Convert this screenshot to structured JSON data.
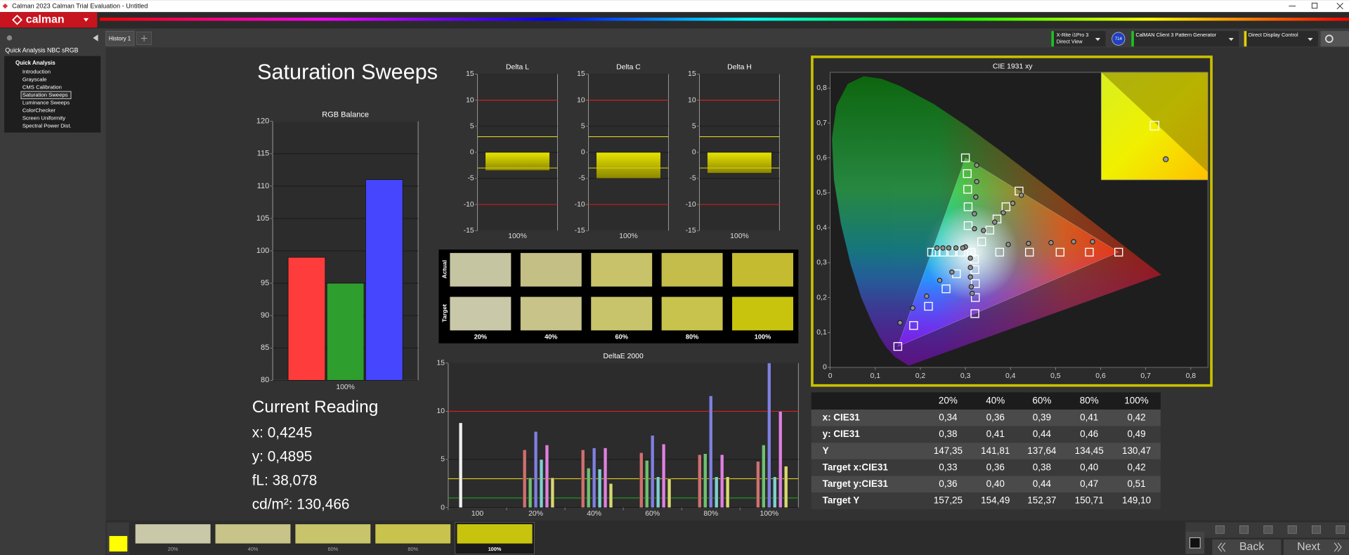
{
  "window": {
    "title": "Calman 2023 Calman Trial Evaluation  - Untitled"
  },
  "app": {
    "logo": "calman"
  },
  "sidebar": {
    "workflow": "Quick Analysis NBC sRGB",
    "group": "Quick Analysis",
    "items": [
      "Introduction",
      "Grayscale",
      "CMS Calibration",
      "Saturation Sweeps",
      "Luminance Sweeps",
      "ColorChecker",
      "Screen Uniformity",
      "Spectral Power Dist."
    ],
    "selected": 3
  },
  "tab": "History 1",
  "devices": {
    "meter": "X-Rite i1Pro 3",
    "meter_mode": "Direct View",
    "meter_badge": "714",
    "generator": "CalMAN Client 3 Pattern Generator",
    "display": "Direct Display Control"
  },
  "page_title": "Saturation Sweeps",
  "rgb_balance": {
    "type": "bar",
    "title": "RGB Balance",
    "categories": [
      "100%"
    ],
    "series": [
      {
        "color": "#ff3c3c",
        "values": [
          99
        ]
      },
      {
        "color": "#2e9e2e",
        "values": [
          95
        ]
      },
      {
        "color": "#4646ff",
        "values": [
          111
        ]
      }
    ],
    "ylim": [
      80,
      120
    ],
    "yticks": [
      80,
      85,
      90,
      95,
      100,
      105,
      110,
      115,
      120
    ],
    "grid": true
  },
  "delta_charts": [
    {
      "type": "bar",
      "title": "Delta L",
      "categories": [
        "100%"
      ],
      "values": [
        -3.5
      ],
      "color": "#c8c400",
      "ylim": [
        -15,
        15
      ],
      "yticks": [
        -15,
        -10,
        -5,
        0,
        5,
        10,
        15
      ],
      "limits": [
        {
          "value": 10,
          "color": "#e02020"
        },
        {
          "value": -10,
          "color": "#e02020"
        },
        {
          "value": 3,
          "color": "#e0d020"
        },
        {
          "value": -3,
          "color": "#e0d020"
        }
      ]
    },
    {
      "type": "bar",
      "title": "Delta C",
      "categories": [
        "100%"
      ],
      "values": [
        -5
      ],
      "color": "#c8c400",
      "ylim": [
        -15,
        15
      ],
      "yticks": [
        -15,
        -10,
        -5,
        0,
        5,
        10,
        15
      ],
      "limits": [
        {
          "value": 10,
          "color": "#e02020"
        },
        {
          "value": -10,
          "color": "#e02020"
        },
        {
          "value": 3,
          "color": "#e0d020"
        },
        {
          "value": -3,
          "color": "#e0d020"
        }
      ]
    },
    {
      "type": "bar",
      "title": "Delta H",
      "categories": [
        "100%"
      ],
      "values": [
        -4
      ],
      "color": "#c8c400",
      "ylim": [
        -15,
        15
      ],
      "yticks": [
        -15,
        -10,
        -5,
        0,
        5,
        10,
        15
      ],
      "limits": [
        {
          "value": 10,
          "color": "#e02020"
        },
        {
          "value": -10,
          "color": "#e02020"
        },
        {
          "value": 3,
          "color": "#e0d020"
        },
        {
          "value": -3,
          "color": "#e0d020"
        }
      ]
    }
  ],
  "swatches": {
    "row_labels": [
      "Actual",
      "Target"
    ],
    "columns": [
      "20%",
      "40%",
      "60%",
      "80%",
      "100%"
    ],
    "actual_colors": [
      "#c6c5a1",
      "#c4c085",
      "#c8c26a",
      "#c4bc4b",
      "#c4bb31"
    ],
    "target_colors": [
      "#c9c8a9",
      "#c7c389",
      "#c8c46c",
      "#c8c34d",
      "#c8c40e"
    ]
  },
  "deltae": {
    "type": "bar",
    "title": "DeltaE 2000",
    "categories": [
      "100",
      "20%",
      "40%",
      "60%",
      "80%",
      "100%"
    ],
    "series": [
      {
        "color": "#f0f0f0",
        "values": [
          8.8,
          null,
          null,
          null,
          null,
          null
        ]
      },
      {
        "color": "#d07070",
        "values": [
          null,
          6.0,
          6.0,
          5.7,
          5.5,
          4.8
        ]
      },
      {
        "color": "#70c070",
        "values": [
          null,
          3.1,
          4.1,
          4.9,
          5.6,
          6.5
        ]
      },
      {
        "color": "#8080e0",
        "values": [
          null,
          7.9,
          6.2,
          7.5,
          11.6,
          15
        ]
      },
      {
        "color": "#80d0d0",
        "values": [
          null,
          5.0,
          4.0,
          3.2,
          3.2,
          3.2
        ]
      },
      {
        "color": "#e080e0",
        "values": [
          null,
          6.5,
          6.2,
          6.6,
          5.5,
          10
        ]
      },
      {
        "color": "#d8d870",
        "values": [
          null,
          3.1,
          2.5,
          3.0,
          3.2,
          4.3
        ]
      }
    ],
    "ylim": [
      0,
      15
    ],
    "yticks": [
      0,
      5,
      10,
      15
    ],
    "limits": [
      {
        "value": 10,
        "color": "#e02020"
      },
      {
        "value": 3,
        "color": "#e0d020"
      },
      {
        "value": 1,
        "color": "#20a020"
      }
    ]
  },
  "cie": {
    "type": "scatter",
    "title": "CIE 1931 xy",
    "xlim": [
      0,
      0.838
    ],
    "ylim": [
      0,
      0.845
    ],
    "xticks": [
      0,
      {
        "value": 0.1,
        "label": "0,1"
      },
      {
        "value": 0.2,
        "label": "0,2"
      },
      {
        "value": 0.3,
        "label": "0,3"
      },
      {
        "value": 0.4,
        "label": "0,4"
      },
      {
        "value": 0.5,
        "label": "0,5"
      },
      {
        "value": 0.6,
        "label": "0,6"
      },
      {
        "value": 0.7,
        "label": "0,7"
      },
      {
        "value": 0.8,
        "label": "0,8"
      }
    ],
    "yticks": [
      0,
      {
        "value": 0.1,
        "label": "0,1"
      },
      {
        "value": 0.2,
        "label": "0,2"
      },
      {
        "value": 0.3,
        "label": "0,3"
      },
      {
        "value": 0.4,
        "label": "0,4"
      },
      {
        "value": 0.5,
        "label": "0,5"
      },
      {
        "value": 0.6,
        "label": "0,6"
      },
      {
        "value": 0.7,
        "label": "0,7"
      },
      {
        "value": 0.8,
        "label": "0,8"
      }
    ],
    "series": [
      {
        "marker": "square",
        "color": "#ffffff",
        "x": [
          0.3127,
          0.376,
          0.442,
          0.51,
          0.575,
          0.64,
          0.306,
          0.306,
          0.305,
          0.304,
          0.3,
          0.28,
          0.257,
          0.218,
          0.185,
          0.15,
          0.29,
          0.27,
          0.25,
          0.235,
          0.225,
          0.32,
          0.321,
          0.322,
          0.322,
          0.321,
          0.336,
          0.354,
          0.37,
          0.39,
          0.419
        ],
        "y": [
          0.329,
          0.33,
          0.33,
          0.33,
          0.33,
          0.33,
          0.406,
          0.46,
          0.51,
          0.555,
          0.6,
          0.268,
          0.225,
          0.175,
          0.12,
          0.06,
          0.33,
          0.33,
          0.33,
          0.33,
          0.33,
          0.31,
          0.28,
          0.24,
          0.2,
          0.154,
          0.36,
          0.393,
          0.425,
          0.46,
          0.505
        ]
      },
      {
        "marker": "circle",
        "color": "#909090",
        "x": [
          0.3,
          0.395,
          0.44,
          0.49,
          0.54,
          0.582,
          0.32,
          0.32,
          0.323,
          0.325,
          0.325,
          0.27,
          0.243,
          0.214,
          0.183,
          0.155,
          0.294,
          0.279,
          0.263,
          0.25,
          0.237,
          0.311,
          0.311,
          0.311,
          0.313,
          0.315,
          0.34,
          0.365,
          0.384,
          0.405,
          0.424
        ],
        "y": [
          0.345,
          0.352,
          0.355,
          0.357,
          0.36,
          0.36,
          0.397,
          0.44,
          0.488,
          0.532,
          0.579,
          0.273,
          0.249,
          0.204,
          0.17,
          0.128,
          0.342,
          0.342,
          0.342,
          0.342,
          0.342,
          0.313,
          0.286,
          0.259,
          0.231,
          0.212,
          0.392,
          0.416,
          0.443,
          0.47,
          0.493
        ]
      }
    ]
  },
  "table": {
    "columns": [
      "20%",
      "40%",
      "60%",
      "80%",
      "100%"
    ],
    "rows": [
      {
        "label": "x: CIE31",
        "values": [
          "0,34",
          "0,36",
          "0,39",
          "0,41",
          "0,42"
        ]
      },
      {
        "label": "y: CIE31",
        "values": [
          "0,38",
          "0,41",
          "0,44",
          "0,46",
          "0,49"
        ]
      },
      {
        "label": "Y",
        "values": [
          "147,35",
          "141,81",
          "137,64",
          "134,45",
          "130,47"
        ]
      },
      {
        "label": "Target x:CIE31",
        "values": [
          "0,33",
          "0,36",
          "0,38",
          "0,40",
          "0,42"
        ]
      },
      {
        "label": "Target y:CIE31",
        "values": [
          "0,36",
          "0,40",
          "0,44",
          "0,47",
          "0,51"
        ]
      },
      {
        "label": "Target Y",
        "values": [
          "157,25",
          "154,49",
          "152,37",
          "150,71",
          "149,10"
        ]
      }
    ]
  },
  "current_reading": {
    "title": "Current Reading",
    "lines": [
      "x: 0,4245",
      "y: 0,4895",
      "fL: 38,078",
      "cd/m²: 130,466"
    ]
  },
  "bottom_bar": {
    "patches": [
      {
        "label": "20%",
        "color": "#c9c8a9"
      },
      {
        "label": "40%",
        "color": "#c7c389"
      },
      {
        "label": "60%",
        "color": "#c8c46c"
      },
      {
        "label": "80%",
        "color": "#c8c34d"
      },
      {
        "label": "100%",
        "color": "#c8c40e"
      }
    ],
    "active": 4,
    "back": "Back",
    "next": "Next"
  }
}
